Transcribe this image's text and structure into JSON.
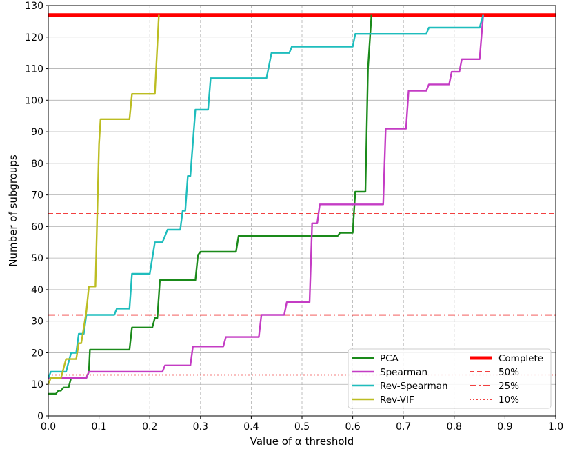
{
  "chart_data": {
    "type": "line",
    "xlabel": "Value of α threshold",
    "ylabel": "Number of subgroups",
    "xlim": [
      0.0,
      1.0
    ],
    "ylim": [
      0,
      130
    ],
    "xticks": [
      "0.0",
      "0.1",
      "0.2",
      "0.3",
      "0.4",
      "0.5",
      "0.6",
      "0.7",
      "0.8",
      "0.9",
      "1.0"
    ],
    "yticks": [
      "0",
      "10",
      "20",
      "30",
      "40",
      "50",
      "60",
      "70",
      "80",
      "90",
      "100",
      "110",
      "120",
      "130"
    ],
    "grid": true,
    "legend_position": "lower-right",
    "series": [
      {
        "name": "PCA",
        "color": "#1a8a1a",
        "style": "solid",
        "points": [
          [
            0.0,
            7
          ],
          [
            0.015,
            7
          ],
          [
            0.02,
            8
          ],
          [
            0.025,
            8
          ],
          [
            0.03,
            9
          ],
          [
            0.04,
            9
          ],
          [
            0.045,
            12
          ],
          [
            0.075,
            12
          ],
          [
            0.08,
            14
          ],
          [
            0.082,
            21
          ],
          [
            0.16,
            21
          ],
          [
            0.165,
            28
          ],
          [
            0.205,
            28
          ],
          [
            0.21,
            31
          ],
          [
            0.215,
            31
          ],
          [
            0.22,
            43
          ],
          [
            0.29,
            43
          ],
          [
            0.295,
            51
          ],
          [
            0.3,
            52
          ],
          [
            0.37,
            52
          ],
          [
            0.375,
            57
          ],
          [
            0.57,
            57
          ],
          [
            0.575,
            58
          ],
          [
            0.6,
            58
          ],
          [
            0.605,
            71
          ],
          [
            0.625,
            71
          ],
          [
            0.63,
            110
          ],
          [
            0.637,
            127
          ]
        ]
      },
      {
        "name": "Spearman",
        "color": "#c43cc4",
        "style": "solid",
        "points": [
          [
            0.0,
            12
          ],
          [
            0.075,
            12
          ],
          [
            0.08,
            14
          ],
          [
            0.225,
            14
          ],
          [
            0.23,
            16
          ],
          [
            0.28,
            16
          ],
          [
            0.285,
            22
          ],
          [
            0.345,
            22
          ],
          [
            0.35,
            25
          ],
          [
            0.415,
            25
          ],
          [
            0.42,
            32
          ],
          [
            0.465,
            32
          ],
          [
            0.47,
            36
          ],
          [
            0.515,
            36
          ],
          [
            0.52,
            61
          ],
          [
            0.53,
            61
          ],
          [
            0.535,
            67
          ],
          [
            0.66,
            67
          ],
          [
            0.665,
            91
          ],
          [
            0.705,
            91
          ],
          [
            0.71,
            103
          ],
          [
            0.745,
            103
          ],
          [
            0.75,
            105
          ],
          [
            0.79,
            105
          ],
          [
            0.795,
            109
          ],
          [
            0.81,
            109
          ],
          [
            0.815,
            113
          ],
          [
            0.85,
            113
          ],
          [
            0.857,
            127
          ]
        ]
      },
      {
        "name": "Rev-Spearman",
        "color": "#1fbdbd",
        "style": "solid",
        "points": [
          [
            0.0,
            12
          ],
          [
            0.005,
            14
          ],
          [
            0.035,
            14
          ],
          [
            0.04,
            17
          ],
          [
            0.045,
            20
          ],
          [
            0.055,
            20
          ],
          [
            0.06,
            26
          ],
          [
            0.07,
            26
          ],
          [
            0.075,
            32
          ],
          [
            0.13,
            32
          ],
          [
            0.135,
            34
          ],
          [
            0.16,
            34
          ],
          [
            0.165,
            45
          ],
          [
            0.2,
            45
          ],
          [
            0.21,
            55
          ],
          [
            0.225,
            55
          ],
          [
            0.23,
            57
          ],
          [
            0.235,
            59
          ],
          [
            0.26,
            59
          ],
          [
            0.265,
            65
          ],
          [
            0.27,
            65
          ],
          [
            0.275,
            76
          ],
          [
            0.28,
            76
          ],
          [
            0.29,
            97
          ],
          [
            0.315,
            97
          ],
          [
            0.32,
            107
          ],
          [
            0.43,
            107
          ],
          [
            0.44,
            115
          ],
          [
            0.475,
            115
          ],
          [
            0.48,
            117
          ],
          [
            0.6,
            117
          ],
          [
            0.605,
            121
          ],
          [
            0.745,
            121
          ],
          [
            0.75,
            123
          ],
          [
            0.85,
            123
          ],
          [
            0.857,
            127
          ]
        ]
      },
      {
        "name": "Rev-VIF",
        "color": "#bcbd22",
        "style": "solid",
        "points": [
          [
            0.0,
            10
          ],
          [
            0.005,
            12
          ],
          [
            0.025,
            12
          ],
          [
            0.035,
            18
          ],
          [
            0.055,
            18
          ],
          [
            0.06,
            23
          ],
          [
            0.065,
            23
          ],
          [
            0.075,
            33
          ],
          [
            0.08,
            41
          ],
          [
            0.093,
            41
          ],
          [
            0.1,
            86
          ],
          [
            0.103,
            94
          ],
          [
            0.16,
            94
          ],
          [
            0.165,
            102
          ],
          [
            0.21,
            102
          ],
          [
            0.218,
            127
          ]
        ]
      }
    ],
    "reference_lines": [
      {
        "name": "Complete",
        "y": 127,
        "color": "#ff0000",
        "style": "thick"
      },
      {
        "name": "50%",
        "y": 64,
        "color": "#ee0000",
        "style": "dashed"
      },
      {
        "name": "25%",
        "y": 32,
        "color": "#ee0000",
        "style": "dashdot"
      },
      {
        "name": "10%",
        "y": 13,
        "color": "#ee0000",
        "style": "dotted"
      }
    ]
  }
}
